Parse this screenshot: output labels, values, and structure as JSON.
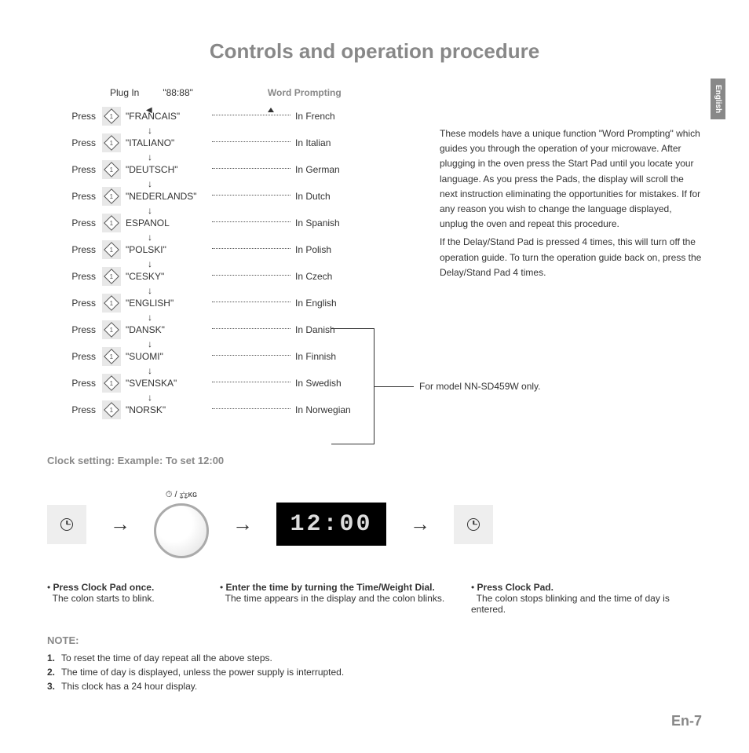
{
  "title": "Controls and operation procedure",
  "side_tab": "English",
  "header": {
    "plugin": "Plug In",
    "display": "\"88:88\"",
    "wp": "Word Prompting"
  },
  "languages": [
    {
      "press": "Press",
      "name": "\"FRANCAIS\"",
      "desc": "In French"
    },
    {
      "press": "Press",
      "name": "\"ITALIANO\"",
      "desc": "In Italian"
    },
    {
      "press": "Press",
      "name": "\"DEUTSCH\"",
      "desc": "In German"
    },
    {
      "press": "Press",
      "name": "\"NEDERLANDS\"",
      "desc": "In Dutch"
    },
    {
      "press": "Press",
      "name": "ESPANOL",
      "desc": "In Spanish"
    },
    {
      "press": "Press",
      "name": "\"POLSKI\"",
      "desc": "In Polish"
    },
    {
      "press": "Press",
      "name": "\"CESKY\"",
      "desc": "In Czech"
    },
    {
      "press": "Press",
      "name": "\"ENGLISH\"",
      "desc": "In English"
    },
    {
      "press": "Press",
      "name": "\"DANSK\"",
      "desc": "In Danish"
    },
    {
      "press": "Press",
      "name": "\"SUOMI\"",
      "desc": "In Finnish"
    },
    {
      "press": "Press",
      "name": "\"SVENSKA\"",
      "desc": "In Swedish"
    },
    {
      "press": "Press",
      "name": "\"NORSK\"",
      "desc": "In Norwegian"
    }
  ],
  "model_note": "For model NN-SD459W only.",
  "paragraph1": "These models have a unique function \"Word Prompting\" which guides you through the operation of your microwave. After plugging in the oven press the Start Pad until you locate your language. As you press the Pads, the display will scroll the next instruction eliminating the opportunities for mistakes. If for any reason you wish to change the language displayed, unplug the oven and repeat this procedure.",
  "paragraph2": "If the Delay/Stand Pad is pressed 4 times, this will turn off the operation guide. To turn the operation guide back on, press the Delay/Stand Pad 4 times.",
  "clock_heading": "Clock setting: Example: To set 12:00",
  "dial_label": "⏱ / ⚖ᴋɢ",
  "display_value": "12:00",
  "instr1_title": "Press Clock Pad once.",
  "instr1_body": "The colon starts to blink.",
  "instr2_title": "Enter the time by turning the Time/Weight Dial.",
  "instr2_body": "The time appears in the display and the colon blinks.",
  "instr3_title": "Press Clock Pad.",
  "instr3_body": "The colon stops blinking and the time of day is entered.",
  "note_heading": "NOTE:",
  "notes": [
    "To reset the time of day repeat all the above steps.",
    "The time of day is displayed, unless the power supply is interrupted.",
    "This clock has a 24 hour display."
  ],
  "page_num": "En-7"
}
